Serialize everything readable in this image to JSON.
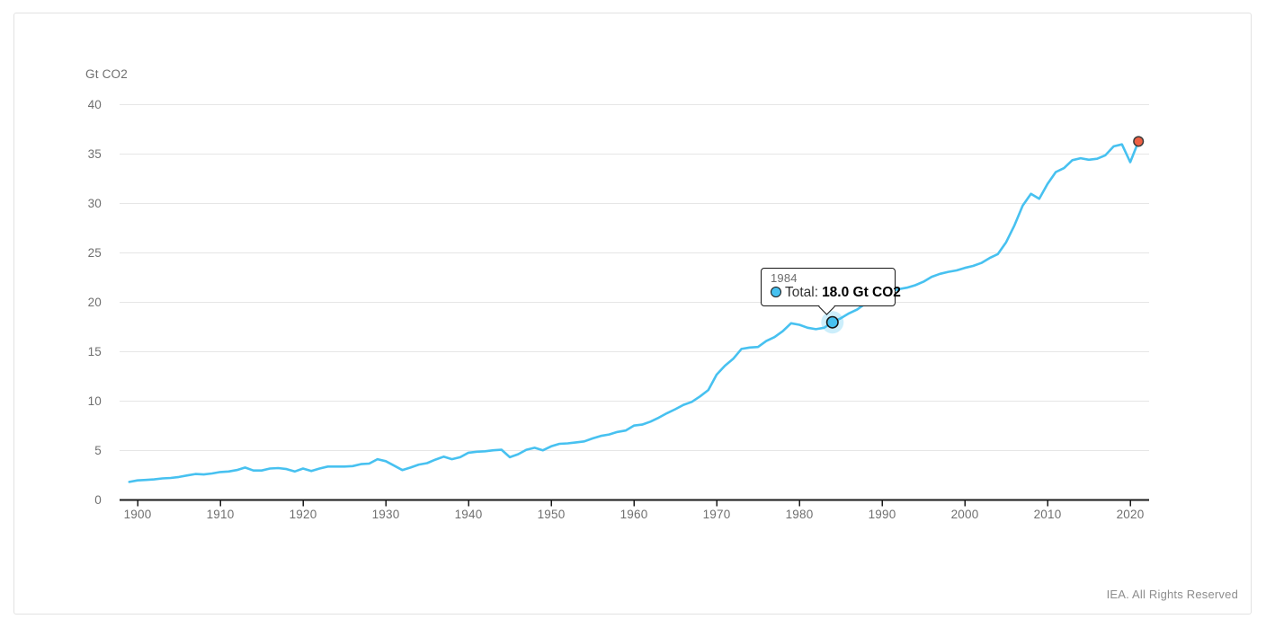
{
  "page": {
    "footer_credit": "IEA. All Rights Reserved"
  },
  "chart": {
    "unit_label": "Gt CO2",
    "tooltip": {
      "year": "1984",
      "series_label": "Total:",
      "value": "18.0 Gt CO2"
    },
    "colors": {
      "line": "#47C1F0",
      "marker_fill": "#47C1F0",
      "marker_stroke": "#161616",
      "marker_halo": "rgba(71,193,240,0.28)",
      "last_point_fill": "#EE6044",
      "last_point_stroke": "#3a3a3a",
      "grid": "#e6e6e6",
      "axis": "#1a1a1a",
      "tick_label": "#6f6f6f"
    }
  },
  "chart_data": {
    "type": "line",
    "title": "",
    "xlabel": "",
    "ylabel": "Gt CO2",
    "legend": false,
    "grid": "horizontal",
    "xlim": [
      1898,
      2022
    ],
    "ylim": [
      0,
      40
    ],
    "xticks": [
      1900,
      1910,
      1920,
      1930,
      1940,
      1950,
      1960,
      1970,
      1980,
      1990,
      2000,
      2010,
      2020
    ],
    "yticks": [
      0,
      5,
      10,
      15,
      20,
      25,
      30,
      35,
      40
    ],
    "x": [
      1899,
      1900,
      1901,
      1902,
      1903,
      1904,
      1905,
      1906,
      1907,
      1908,
      1909,
      1910,
      1911,
      1912,
      1913,
      1914,
      1915,
      1916,
      1917,
      1918,
      1919,
      1920,
      1921,
      1922,
      1923,
      1924,
      1925,
      1926,
      1927,
      1928,
      1929,
      1930,
      1931,
      1932,
      1933,
      1934,
      1935,
      1936,
      1937,
      1938,
      1939,
      1940,
      1941,
      1942,
      1943,
      1944,
      1945,
      1946,
      1947,
      1948,
      1949,
      1950,
      1951,
      1952,
      1953,
      1954,
      1955,
      1956,
      1957,
      1958,
      1959,
      1960,
      1961,
      1962,
      1963,
      1964,
      1965,
      1966,
      1967,
      1968,
      1969,
      1970,
      1971,
      1972,
      1973,
      1974,
      1975,
      1976,
      1977,
      1978,
      1979,
      1980,
      1981,
      1982,
      1983,
      1984,
      1985,
      1986,
      1987,
      1988,
      1989,
      1990,
      1991,
      1992,
      1993,
      1994,
      1995,
      1996,
      1997,
      1998,
      1999,
      2000,
      2001,
      2002,
      2003,
      2004,
      2005,
      2006,
      2007,
      2008,
      2009,
      2010,
      2011,
      2012,
      2013,
      2014,
      2015,
      2016,
      2017,
      2018,
      2019,
      2020,
      2021
    ],
    "series": [
      {
        "name": "Total",
        "color": "#47C1F0",
        "values": [
          1.85,
          2.0,
          2.05,
          2.1,
          2.2,
          2.25,
          2.35,
          2.5,
          2.65,
          2.6,
          2.7,
          2.85,
          2.9,
          3.05,
          3.3,
          3.0,
          3.0,
          3.2,
          3.25,
          3.15,
          2.9,
          3.2,
          2.95,
          3.2,
          3.4,
          3.4,
          3.4,
          3.45,
          3.65,
          3.7,
          4.15,
          3.95,
          3.5,
          3.05,
          3.3,
          3.6,
          3.75,
          4.1,
          4.4,
          4.15,
          4.35,
          4.8,
          4.9,
          4.95,
          5.05,
          5.1,
          4.35,
          4.65,
          5.1,
          5.3,
          5.05,
          5.45,
          5.7,
          5.75,
          5.85,
          5.95,
          6.25,
          6.5,
          6.65,
          6.9,
          7.05,
          7.55,
          7.65,
          7.95,
          8.35,
          8.8,
          9.2,
          9.65,
          9.95,
          10.5,
          11.15,
          12.7,
          13.6,
          14.3,
          15.3,
          15.45,
          15.5,
          16.1,
          16.5,
          17.1,
          17.9,
          17.75,
          17.45,
          17.3,
          17.45,
          18.0,
          18.4,
          18.9,
          19.3,
          19.9,
          20.3,
          20.6,
          21.1,
          21.35,
          21.5,
          21.75,
          22.1,
          22.6,
          22.9,
          23.1,
          23.25,
          23.5,
          23.7,
          24.0,
          24.5,
          24.9,
          26.1,
          27.8,
          29.8,
          31.0,
          30.5,
          32.0,
          33.2,
          33.6,
          34.4,
          34.6,
          34.45,
          34.55,
          34.9,
          35.8,
          36.0,
          34.2,
          36.3
        ]
      }
    ],
    "highlight_point": {
      "x": 1984,
      "y": 18.0,
      "series": "Total",
      "label": "18.0 Gt CO2"
    },
    "last_point": {
      "x": 2021,
      "y": 36.3,
      "color": "#EE6044"
    }
  }
}
